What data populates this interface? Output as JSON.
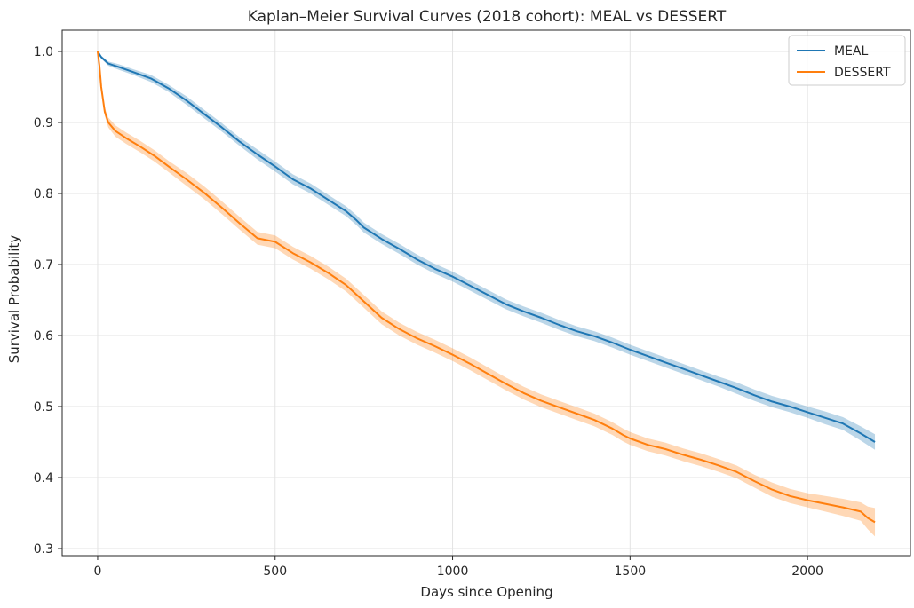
{
  "chart_data": {
    "type": "line",
    "title": "Kaplan–Meier Survival Curves (2018 cohort): MEAL vs DESSERT",
    "xlabel": "Days since Opening",
    "ylabel": "Survival Probability",
    "xlim": [
      -100,
      2290
    ],
    "ylim": [
      0.29,
      1.03
    ],
    "xticks": [
      0,
      500,
      1000,
      1500,
      2000
    ],
    "xtick_labels": [
      "0",
      "500",
      "1000",
      "1500",
      "2000"
    ],
    "yticks": [
      0.3,
      0.4,
      0.5,
      0.6,
      0.7,
      0.8,
      0.9,
      1.0
    ],
    "ytick_labels": [
      "0.3",
      "0.4",
      "0.5",
      "0.6",
      "0.7",
      "0.8",
      "0.9",
      "1.0"
    ],
    "grid": true,
    "legend_position": "top-right",
    "confidence_band": true,
    "series": [
      {
        "name": "MEAL",
        "color": "#1f77b4",
        "x": [
          0,
          10,
          30,
          60,
          100,
          150,
          200,
          250,
          300,
          350,
          400,
          450,
          500,
          550,
          600,
          650,
          700,
          730,
          750,
          800,
          850,
          900,
          950,
          1000,
          1050,
          1100,
          1150,
          1200,
          1250,
          1300,
          1350,
          1400,
          1450,
          1500,
          1550,
          1600,
          1650,
          1700,
          1750,
          1800,
          1850,
          1900,
          1950,
          2000,
          2050,
          2100,
          2150,
          2190
        ],
        "y": [
          1.0,
          0.992,
          0.983,
          0.978,
          0.971,
          0.962,
          0.948,
          0.931,
          0.912,
          0.893,
          0.873,
          0.855,
          0.838,
          0.82,
          0.807,
          0.791,
          0.775,
          0.762,
          0.752,
          0.736,
          0.722,
          0.707,
          0.694,
          0.683,
          0.67,
          0.657,
          0.644,
          0.634,
          0.625,
          0.615,
          0.606,
          0.599,
          0.59,
          0.58,
          0.571,
          0.562,
          0.553,
          0.544,
          0.535,
          0.526,
          0.516,
          0.507,
          0.5,
          0.492,
          0.484,
          0.476,
          0.462,
          0.45
        ],
        "ci_halfwidth": [
          0.0,
          0.002,
          0.003,
          0.004,
          0.004,
          0.005,
          0.005,
          0.006,
          0.006,
          0.006,
          0.006,
          0.007,
          0.007,
          0.007,
          0.007,
          0.007,
          0.007,
          0.007,
          0.007,
          0.007,
          0.007,
          0.007,
          0.007,
          0.007,
          0.007,
          0.007,
          0.007,
          0.007,
          0.007,
          0.007,
          0.007,
          0.007,
          0.007,
          0.007,
          0.007,
          0.007,
          0.007,
          0.007,
          0.007,
          0.008,
          0.008,
          0.008,
          0.008,
          0.008,
          0.009,
          0.009,
          0.01,
          0.011
        ]
      },
      {
        "name": "DESSERT",
        "color": "#ff7f0e",
        "x": [
          0,
          5,
          10,
          20,
          30,
          50,
          80,
          120,
          160,
          200,
          250,
          300,
          350,
          400,
          450,
          500,
          550,
          600,
          650,
          700,
          750,
          800,
          850,
          900,
          950,
          1000,
          1050,
          1100,
          1150,
          1200,
          1250,
          1300,
          1350,
          1400,
          1450,
          1480,
          1500,
          1550,
          1600,
          1650,
          1700,
          1750,
          1800,
          1850,
          1900,
          1950,
          2000,
          2050,
          2100,
          2150,
          2170,
          2190
        ],
        "y": [
          1.0,
          0.98,
          0.95,
          0.915,
          0.9,
          0.888,
          0.878,
          0.866,
          0.853,
          0.838,
          0.82,
          0.801,
          0.78,
          0.758,
          0.737,
          0.732,
          0.716,
          0.703,
          0.688,
          0.671,
          0.648,
          0.625,
          0.609,
          0.596,
          0.585,
          0.573,
          0.56,
          0.546,
          0.532,
          0.519,
          0.508,
          0.499,
          0.49,
          0.481,
          0.469,
          0.46,
          0.455,
          0.446,
          0.44,
          0.432,
          0.425,
          0.417,
          0.408,
          0.395,
          0.383,
          0.374,
          0.368,
          0.363,
          0.358,
          0.352,
          0.343,
          0.337
        ],
        "ci_halfwidth": [
          0.0,
          0.002,
          0.004,
          0.006,
          0.007,
          0.008,
          0.008,
          0.008,
          0.008,
          0.008,
          0.009,
          0.009,
          0.009,
          0.009,
          0.009,
          0.009,
          0.009,
          0.009,
          0.009,
          0.009,
          0.009,
          0.009,
          0.009,
          0.009,
          0.009,
          0.009,
          0.009,
          0.009,
          0.009,
          0.009,
          0.009,
          0.009,
          0.009,
          0.009,
          0.009,
          0.009,
          0.009,
          0.009,
          0.009,
          0.009,
          0.009,
          0.009,
          0.009,
          0.009,
          0.01,
          0.01,
          0.01,
          0.011,
          0.012,
          0.013,
          0.016,
          0.02
        ]
      }
    ]
  }
}
